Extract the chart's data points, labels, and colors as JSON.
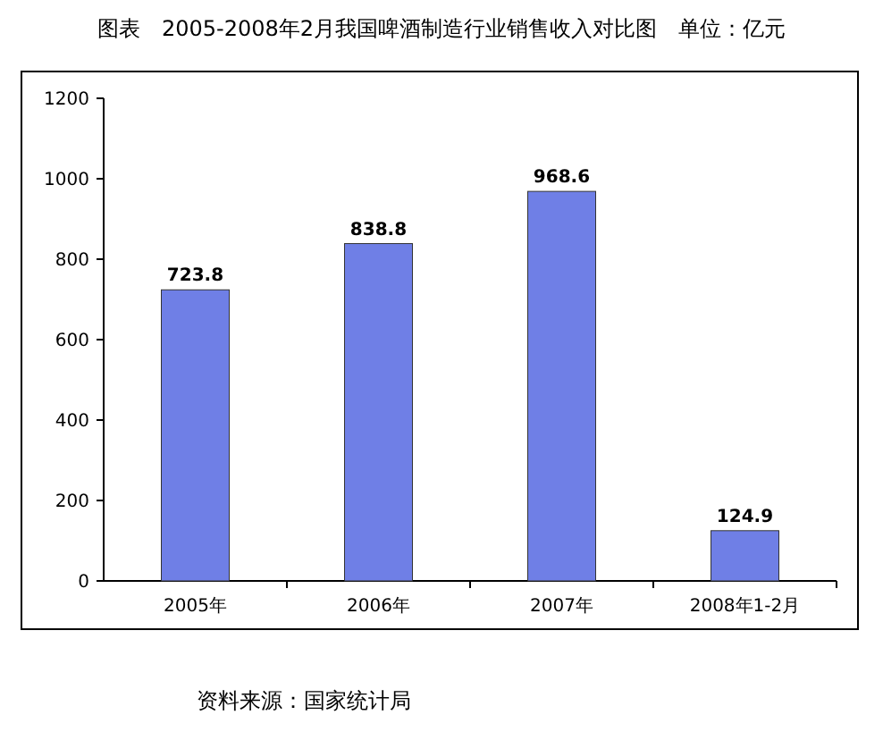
{
  "chart_data": {
    "type": "bar",
    "title": "图表　2005-2008年2月我国啤酒制造行业销售收入对比图　单位：亿元",
    "categories": [
      "2005年",
      "2006年",
      "2007年",
      "2008年1-2月"
    ],
    "values": [
      723.8,
      838.8,
      968.6,
      124.9
    ],
    "color": "#6f7fe6",
    "ylim": [
      0,
      1200
    ],
    "yticks": [
      0,
      200,
      400,
      600,
      800,
      1000,
      1200
    ],
    "data_labels": true,
    "grid": false,
    "annotations": [
      "资料来源：国家统计局"
    ]
  }
}
